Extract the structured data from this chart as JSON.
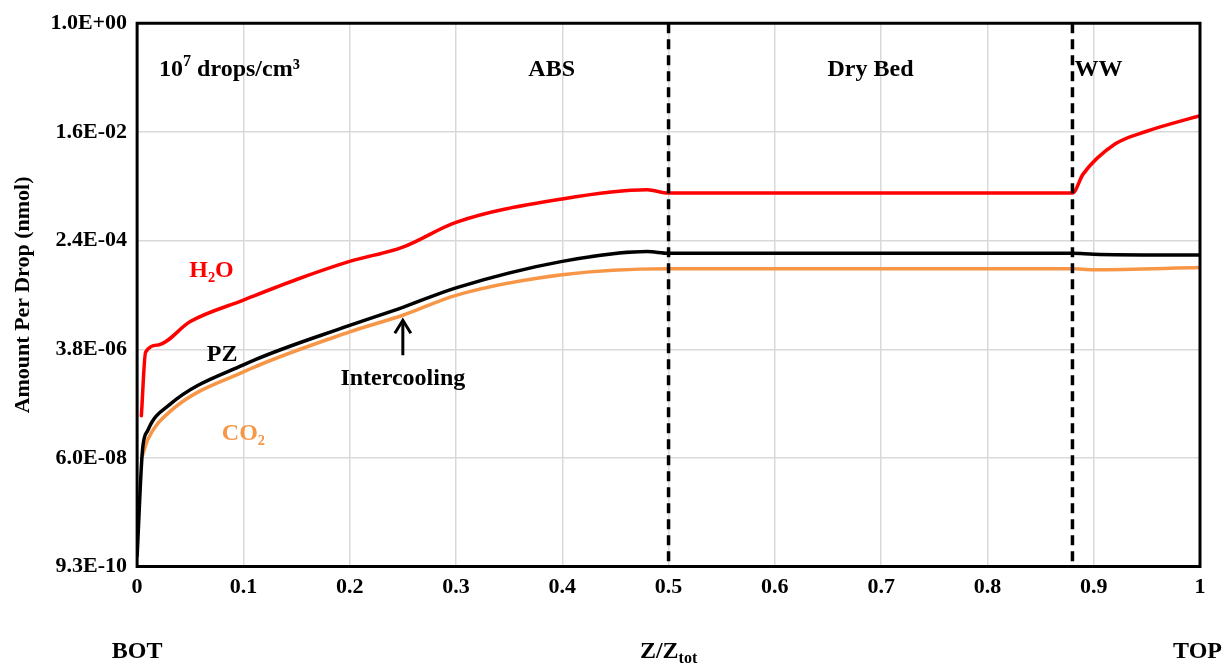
{
  "chart_data": {
    "type": "line",
    "xlabel": "Z/Z$_{tot}$",
    "ylabel": "Amount Per Drop (nmol)",
    "log": "y",
    "grid": true,
    "line_style": "solid",
    "marker": "none",
    "xlim": [
      0,
      1
    ],
    "xticks": [
      0,
      0.1,
      0.2,
      0.3,
      0.4,
      0.5,
      0.6,
      0.7,
      0.8,
      0.9,
      1
    ],
    "ylim": [
      9.31e-10,
      1
    ],
    "yticks": [
      {
        "value": 9.31e-10,
        "label": "9.3E-10"
      },
      {
        "value": 5.96e-08,
        "label": "6.0E-08"
      },
      {
        "value": 3.81e-06,
        "label": "3.8E-06"
      },
      {
        "value": 0.000244,
        "label": "2.4E-04"
      },
      {
        "value": 0.0156,
        "label": "1.6E-02"
      },
      {
        "value": 1,
        "label": "1.0E+00"
      }
    ],
    "series": [
      {
        "name": "H₂O",
        "color": "#ff0000",
        "x": [
          0.004,
          0.008,
          0.02,
          0.05,
          0.1,
          0.15,
          0.2,
          0.25,
          0.3,
          0.4,
          0.48,
          0.5,
          0.88,
          0.89,
          0.92,
          0.95,
          1.0
        ],
        "values": [
          3e-07,
          3.4e-06,
          4.5e-06,
          1.1e-05,
          2.5e-05,
          5.5e-05,
          0.00011,
          0.00019,
          0.00049,
          0.0012,
          0.0017,
          0.0015,
          0.0015,
          0.0031,
          0.0098,
          0.016,
          0.029
        ]
      },
      {
        "name": "PZ",
        "color": "#000000",
        "x": [
          0,
          0.005,
          0.01,
          0.03,
          0.1,
          0.2,
          0.25,
          0.3,
          0.4,
          0.48,
          0.5,
          0.88,
          0.9,
          1.0
        ],
        "values": [
          1.4e-09,
          7.8e-08,
          1.7e-07,
          4.5e-07,
          2.1e-06,
          9.5e-06,
          1.9e-05,
          4e-05,
          0.00011,
          0.00016,
          0.00015,
          0.00015,
          0.000145,
          0.00014
        ]
      },
      {
        "name": "CO₂",
        "color": "#f79646",
        "x": [
          0.005,
          0.01,
          0.03,
          0.1,
          0.2,
          0.25,
          0.3,
          0.4,
          0.5,
          0.88,
          0.9,
          1.0
        ],
        "values": [
          6.5e-08,
          1.2e-07,
          3.4e-07,
          1.6e-06,
          7.4e-06,
          1.4e-05,
          3e-05,
          6.6e-05,
          8.3e-05,
          8.3e-05,
          8e-05,
          8.7e-05
        ]
      }
    ],
    "ref_lines": [
      {
        "axis": "x",
        "value": 0.5,
        "line_style": "dashed",
        "color": "#000000"
      },
      {
        "axis": "x",
        "value": 0.88,
        "line_style": "dashed",
        "color": "#000000"
      }
    ],
    "annotations": [
      "10$^{7}$ drops/cm³",
      "ABS",
      "Dry Bed",
      "WW",
      "BOT",
      "TOP",
      {
        "text": "Intercooling",
        "x": 0.25,
        "y": 1.4e-05
      }
    ]
  }
}
